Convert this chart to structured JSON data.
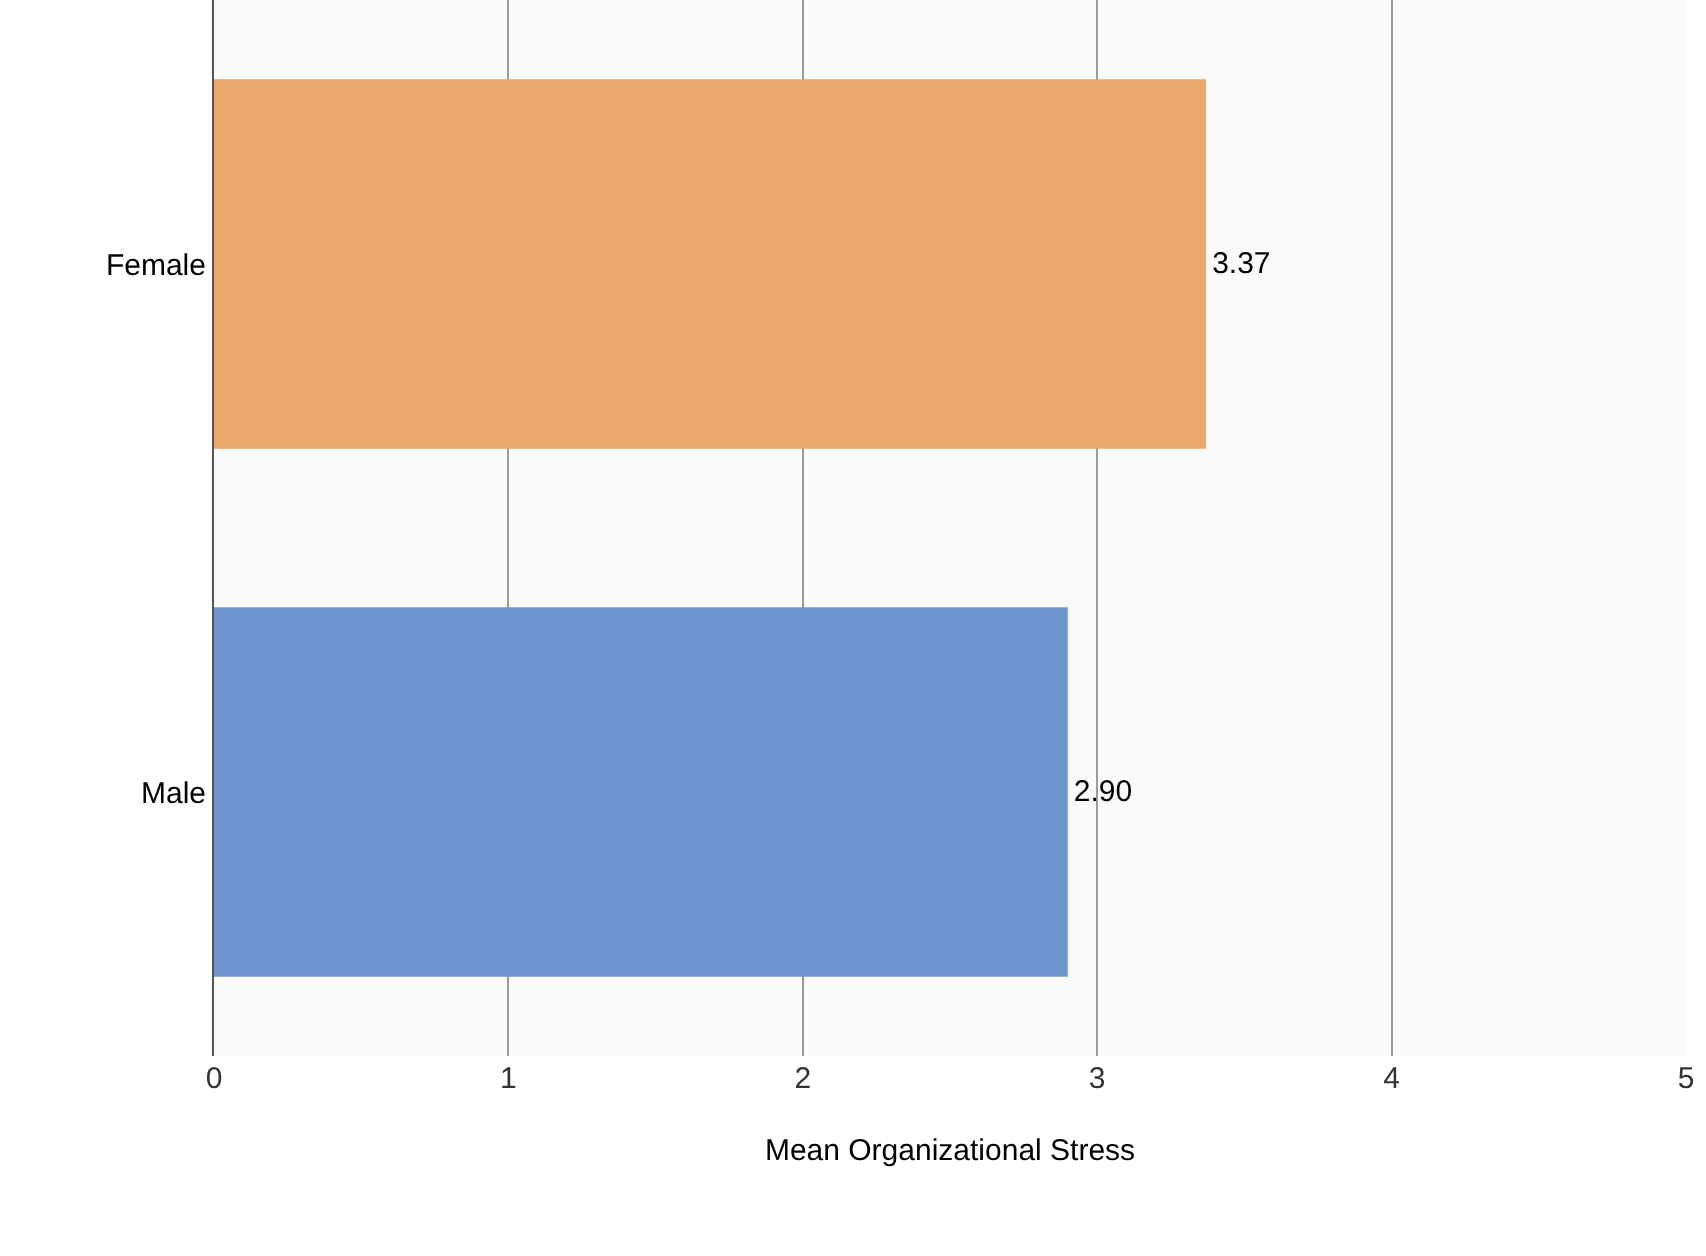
{
  "chart_data": {
    "type": "bar",
    "orientation": "horizontal",
    "categories": [
      "Female",
      "Male"
    ],
    "values": [
      3.37,
      2.9
    ],
    "colors": [
      "#e9a96c",
      "#6f95cf"
    ],
    "value_labels": [
      "3.37",
      "2.90"
    ],
    "xlabel": "Mean Organizational Stress",
    "xlim": [
      0,
      5
    ],
    "xticks": [
      0,
      1,
      2,
      3,
      4,
      5
    ],
    "grid": "x"
  }
}
